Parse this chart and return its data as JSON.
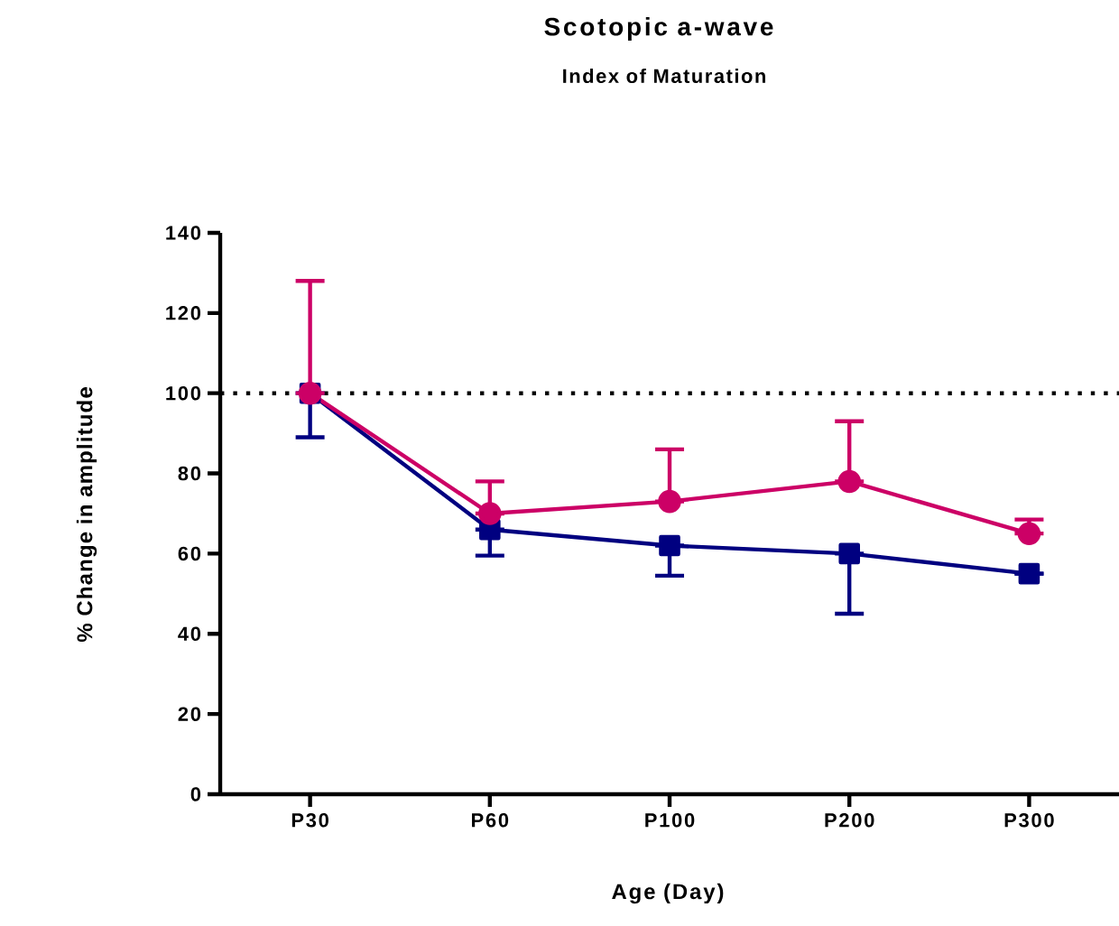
{
  "chart_data": {
    "type": "line",
    "title": "Scotopic a-wave",
    "subtitle": "Index of Maturation",
    "xlabel": "Age (Day)",
    "ylabel": "% Change in amplitude",
    "categories": [
      "P30",
      "P60",
      "P100",
      "P200",
      "P300"
    ],
    "series": [
      {
        "color": "#000080",
        "marker": "square",
        "values": [
          100,
          66,
          62,
          60,
          55
        ],
        "errors": [
          [
            89,
            100
          ],
          [
            59.5,
            66
          ],
          [
            54.5,
            62
          ],
          [
            45,
            60
          ],
          null
        ]
      },
      {
        "color": "#cc0066",
        "marker": "circle",
        "values": [
          100,
          70,
          73,
          78,
          65
        ],
        "errors": [
          [
            100,
            128
          ],
          [
            70,
            78
          ],
          [
            73,
            86
          ],
          [
            78,
            93
          ],
          [
            65,
            68.5
          ]
        ]
      }
    ],
    "ylim": [
      0,
      140
    ],
    "yticks": [
      0,
      20,
      40,
      60,
      80,
      100,
      120,
      140
    ],
    "ref_lines": [
      {
        "axis": "y",
        "value": 100,
        "color": "#000000",
        "line_style": "dotted"
      }
    ],
    "grid": false,
    "line_style": "solid"
  }
}
